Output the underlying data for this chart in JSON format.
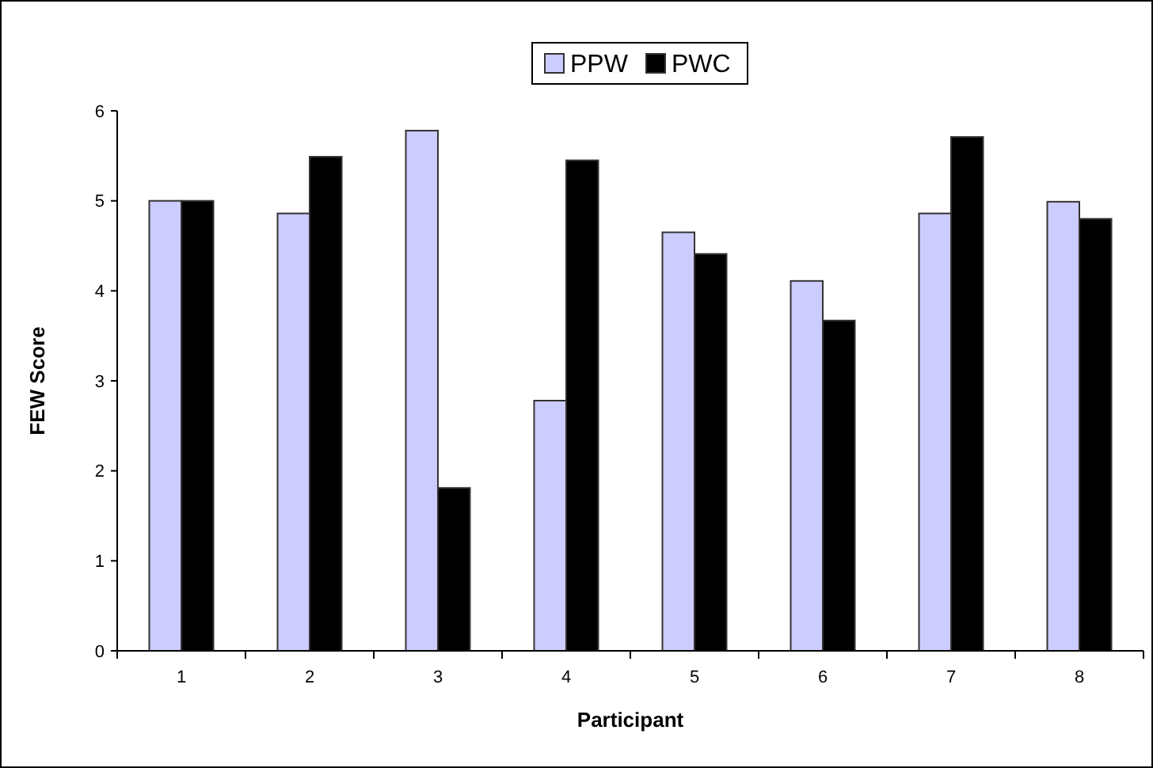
{
  "chart_data": {
    "type": "bar",
    "xlabel": "Participant",
    "ylabel": "FEW Score",
    "categories": [
      "1",
      "2",
      "3",
      "4",
      "5",
      "6",
      "7",
      "8"
    ],
    "series": [
      {
        "name": "PPW",
        "color": "#ccccff",
        "values": [
          5.0,
          4.86,
          5.78,
          2.78,
          4.65,
          4.11,
          4.86,
          4.99
        ]
      },
      {
        "name": "PWC",
        "color": "#000000",
        "values": [
          5.0,
          5.49,
          1.81,
          5.45,
          4.41,
          3.67,
          5.71,
          4.8
        ]
      }
    ],
    "ylim": [
      0,
      6
    ],
    "yticks": [
      0,
      1,
      2,
      3,
      4,
      5,
      6
    ],
    "legend": "top"
  }
}
